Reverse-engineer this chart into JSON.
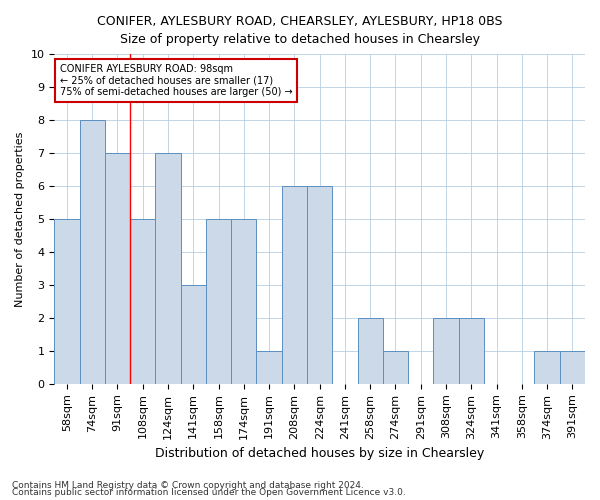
{
  "title": "CONIFER, AYLESBURY ROAD, CHEARSLEY, AYLESBURY, HP18 0BS",
  "subtitle": "Size of property relative to detached houses in Chearsley",
  "xlabel": "Distribution of detached houses by size in Chearsley",
  "ylabel": "Number of detached properties",
  "categories": [
    "58sqm",
    "74sqm",
    "91sqm",
    "108sqm",
    "124sqm",
    "141sqm",
    "158sqm",
    "174sqm",
    "191sqm",
    "208sqm",
    "224sqm",
    "241sqm",
    "258sqm",
    "274sqm",
    "291sqm",
    "308sqm",
    "324sqm",
    "341sqm",
    "358sqm",
    "374sqm",
    "391sqm"
  ],
  "values": [
    5,
    8,
    7,
    5,
    7,
    3,
    5,
    5,
    1,
    6,
    6,
    0,
    2,
    1,
    0,
    2,
    2,
    0,
    0,
    1,
    1
  ],
  "bar_color": "#ccd9e8",
  "bar_edge_color": "#5a8fc0",
  "red_line_x": 2.5,
  "ylim": [
    0,
    10
  ],
  "yticks": [
    0,
    1,
    2,
    3,
    4,
    5,
    6,
    7,
    8,
    9,
    10
  ],
  "annotation_text": "CONIFER AYLESBURY ROAD: 98sqm\n← 25% of detached houses are smaller (17)\n75% of semi-detached houses are larger (50) →",
  "annotation_box_color": "#ffffff",
  "annotation_box_edge": "#cc0000",
  "footnote1": "Contains HM Land Registry data © Crown copyright and database right 2024.",
  "footnote2": "Contains public sector information licensed under the Open Government Licence v3.0.",
  "title_fontsize": 9,
  "subtitle_fontsize": 9,
  "xlabel_fontsize": 9,
  "ylabel_fontsize": 8,
  "tick_fontsize": 8,
  "annot_fontsize": 7,
  "footnote_fontsize": 6.5
}
